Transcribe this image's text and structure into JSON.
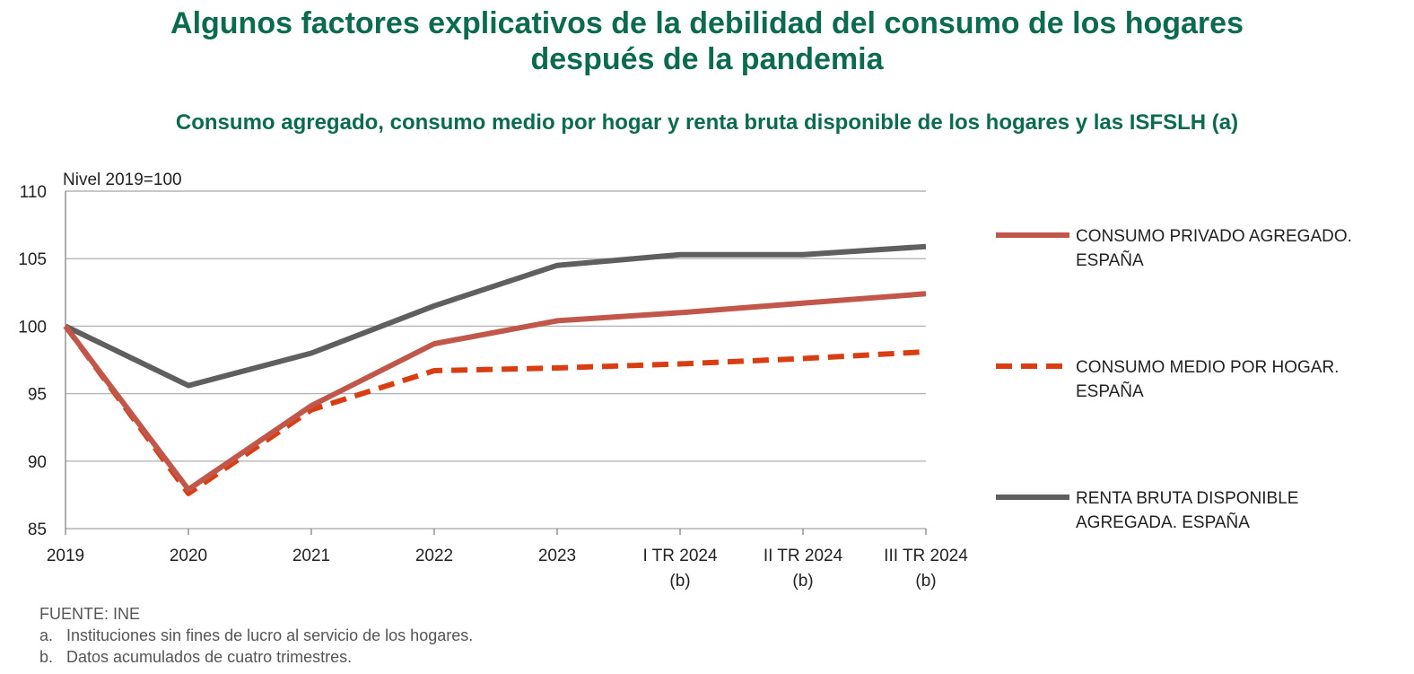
{
  "title_line1": "Algunos factores explicativos de la debilidad del consumo de los hogares",
  "title_line2": "después de la pandemia",
  "subtitle": "Consumo agregado, consumo medio por hogar y renta bruta disponible de los hogares y las ISFSLH (a)",
  "colors": {
    "title": "#0c6b4f",
    "consumo_agregado": "#c0574a",
    "consumo_medio": "#d93d12",
    "renta": "#5f5f5f",
    "grid": "#b4b4b4"
  },
  "chart_data": {
    "type": "line",
    "unit_label": "Nivel 2019=100",
    "categories": [
      [
        "2019"
      ],
      [
        "2020"
      ],
      [
        "2021"
      ],
      [
        "2022"
      ],
      [
        "2023"
      ],
      [
        "I TR 2024",
        "(b)"
      ],
      [
        "II TR 2024",
        "(b)"
      ],
      [
        "III TR 2024",
        "(b)"
      ]
    ],
    "ylim": [
      85,
      110
    ],
    "yticks": [
      85,
      90,
      95,
      100,
      105,
      110
    ],
    "grid": true,
    "legend_position": "right",
    "series": [
      {
        "name": [
          "CONSUMO PRIVADO AGREGADO.",
          "ESPAÑA"
        ],
        "values": [
          100,
          87.9,
          94.1,
          98.7,
          100.4,
          101.0,
          101.7,
          102.4
        ],
        "style": "solid",
        "color": "#c0574a"
      },
      {
        "name": [
          "CONSUMO MEDIO POR HOGAR.",
          "ESPAÑA"
        ],
        "values": [
          100,
          87.6,
          93.8,
          96.7,
          96.9,
          97.2,
          97.6,
          98.1
        ],
        "style": "dashed",
        "color": "#d93d12"
      },
      {
        "name": [
          "RENTA BRUTA DISPONIBLE",
          "AGREGADA. ESPAÑA"
        ],
        "values": [
          100,
          95.6,
          98.0,
          101.5,
          104.5,
          105.3,
          105.3,
          105.9
        ],
        "style": "solid",
        "color": "#5f5f5f"
      }
    ]
  },
  "notes": {
    "source": "FUENTE: INE",
    "a_letter": "a.",
    "a_text": "Instituciones sin fines de lucro al servicio de los hogares.",
    "b_letter": "b.",
    "b_text": "Datos acumulados de cuatro trimestres."
  }
}
